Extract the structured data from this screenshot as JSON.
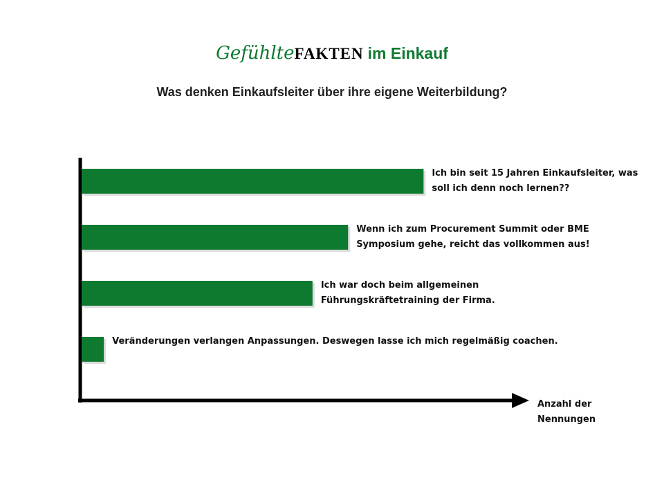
{
  "chart_data": {
    "type": "bar",
    "title": {
      "script": "Gefühlte",
      "emphasis": "FAKTEN",
      "rest": "im Einkauf"
    },
    "subtitle": "Was denken Einkaufsleiter über ihre eigene Weiterbildung?",
    "categories": [
      "Ich bin seit 15 Jahren Einkaufsleiter, was soll ich denn noch lernen??",
      "Wenn ich zum Procurement Summit oder BME Symposium gehe, reicht das vollkommen aus!",
      "Ich war doch beim allgemeinen Führungskräftetraining der Firma.",
      "Veränderungen verlangen Anpassungen. Deswegen lasse ich mich regelmäßig coachen."
    ],
    "values": [
      77,
      60,
      52,
      5
    ],
    "color": "#0e7a30",
    "xlim": [
      0,
      100
    ],
    "x_label": "Anzahl der Nennungen"
  }
}
